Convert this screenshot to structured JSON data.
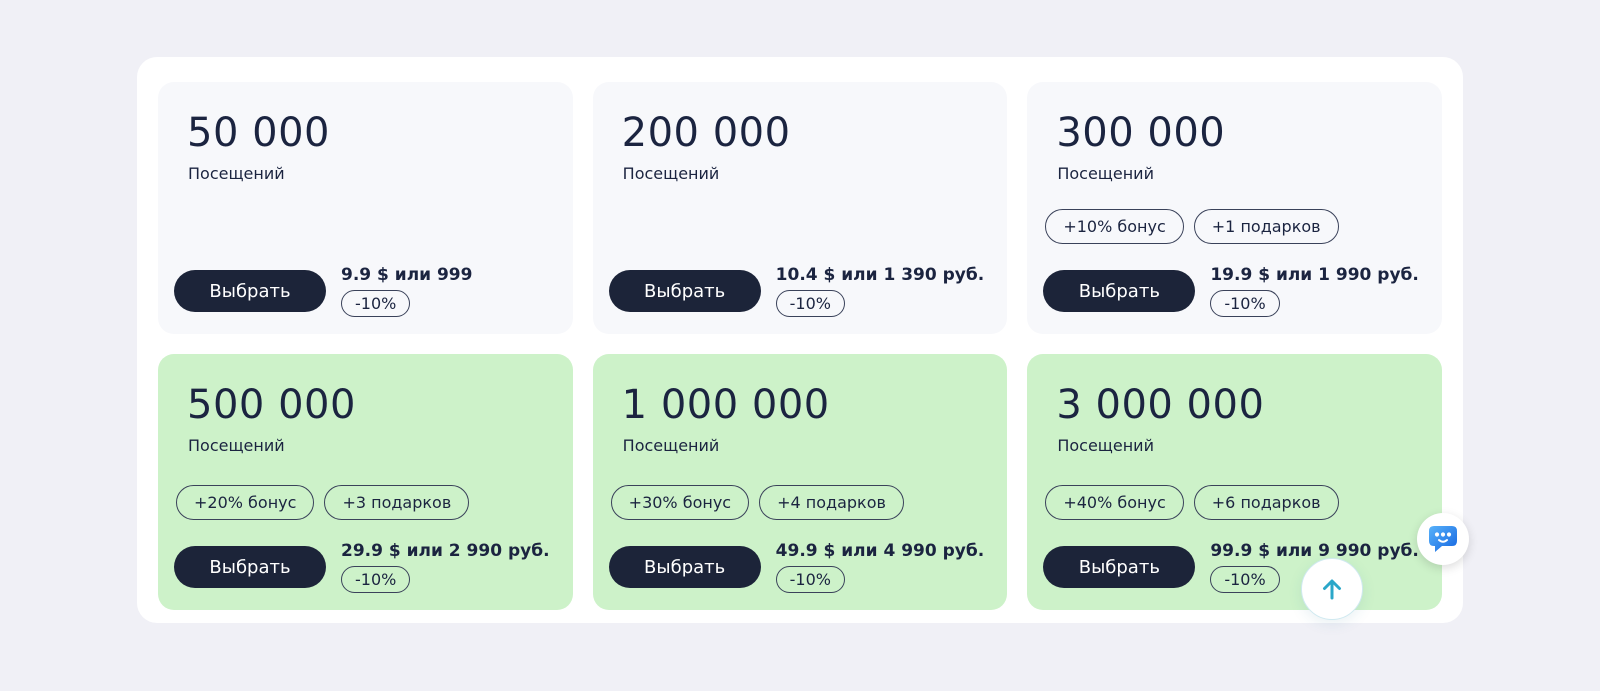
{
  "labels": {
    "visits": "Посещений",
    "select": "Выбрать",
    "discount": "-10%"
  },
  "cards": [
    {
      "visits": "50 000",
      "price": "9.9 $ или 999",
      "badges": [],
      "highlighted": false
    },
    {
      "visits": "200 000",
      "price": "10.4 $ или 1 390 руб.",
      "badges": [],
      "highlighted": false
    },
    {
      "visits": "300 000",
      "price": "19.9 $ или 1 990 руб.",
      "badges": [
        "+10% бонус",
        "+1 подарков"
      ],
      "highlighted": false
    },
    {
      "visits": "500 000",
      "price": "29.9 $ или 2 990 руб.",
      "badges": [
        "+20% бонус",
        "+3 подарков"
      ],
      "highlighted": true
    },
    {
      "visits": "1 000 000",
      "price": "49.9 $ или 4 990 руб.",
      "badges": [
        "+30% бонус",
        "+4 подарков"
      ],
      "highlighted": true
    },
    {
      "visits": "3 000 000",
      "price": "99.9 $ или 9 990 руб.",
      "badges": [
        "+40% бонус",
        "+6 подарков"
      ],
      "highlighted": true
    }
  ],
  "floating": {
    "scroll_top_icon": "up-arrow-icon",
    "chat_icon": "chat-bubble-icon"
  },
  "colors": {
    "page_background": "#f0f0f6",
    "panel_background": "#ffffff",
    "card_default": "#f7f8fb",
    "card_highlight_green": "#cdf2c9",
    "text_navy": "#1b2440",
    "button_navy": "#1c2439",
    "scroll_arrow_teal": "#2ba7c9",
    "chat_blue": "#2f7ef0"
  }
}
